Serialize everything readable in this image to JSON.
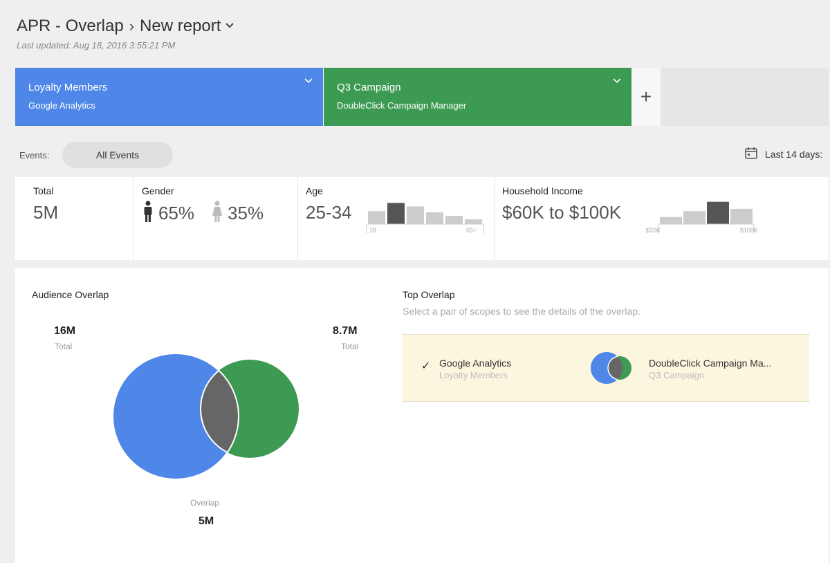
{
  "header": {
    "report_group": "APR - Overlap",
    "separator": "›",
    "report_name": "New report",
    "last_updated": "Last updated: Aug 18, 2016 3:55:21 PM"
  },
  "scopes": [
    {
      "name": "Loyalty Members",
      "source": "Google Analytics",
      "color": "#4f87e8"
    },
    {
      "name": "Q3 Campaign",
      "source": "DoubleClick Campaign Manager",
      "color": "#3d9a53"
    }
  ],
  "add_scope_label": "+",
  "events": {
    "label": "Events:",
    "selected": "All Events"
  },
  "date_range": {
    "label": "Last 14 days:"
  },
  "stats": {
    "total": {
      "label": "Total",
      "value": "5M"
    },
    "gender": {
      "label": "Gender",
      "male_pct": "65%",
      "female_pct": "35%"
    },
    "age": {
      "label": "Age",
      "value": "25-34",
      "axis_min": "18",
      "axis_max": "65+",
      "bars": [
        0.55,
        0.9,
        0.75,
        0.5,
        0.35,
        0.2
      ],
      "highlight_index": 1
    },
    "income": {
      "label": "Household Income",
      "value": "$60K to $100K",
      "axis_min": "$20K",
      "axis_max": "$100K",
      "bars": [
        0.3,
        0.55,
        0.95,
        0.65
      ],
      "highlight_index": 2
    }
  },
  "audience_overlap": {
    "title": "Audience Overlap",
    "left_total": "16M",
    "left_total_label": "Total",
    "right_total": "8.7M",
    "right_total_label": "Total",
    "overlap_label": "Overlap",
    "overlap_value": "5M",
    "colors": {
      "left": "#4f87e8",
      "right": "#3d9a53",
      "overlap": "#666666"
    }
  },
  "top_overlap": {
    "title": "Top Overlap",
    "description": "Select a pair of scopes to see the details of the overlap.",
    "pairs": [
      {
        "a_name": "Google Analytics",
        "a_sub": "Loyalty Members",
        "b_name": "DoubleClick Campaign Ma...",
        "b_sub": "Q3 Campaign",
        "checked": "✓"
      }
    ]
  }
}
